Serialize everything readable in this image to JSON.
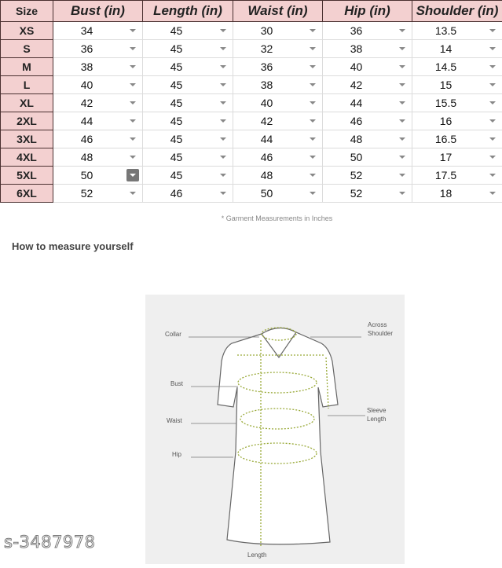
{
  "table": {
    "headers": [
      "Size",
      "Bust (in)",
      "Length (in)",
      "Waist (in)",
      "Hip (in)",
      "Shoulder (in)"
    ],
    "rows": [
      [
        "XS",
        "34",
        "45",
        "30",
        "36",
        "13.5"
      ],
      [
        "S",
        "36",
        "45",
        "32",
        "38",
        "14"
      ],
      [
        "M",
        "38",
        "45",
        "36",
        "40",
        "14.5"
      ],
      [
        "L",
        "40",
        "45",
        "38",
        "42",
        "15"
      ],
      [
        "XL",
        "42",
        "45",
        "40",
        "44",
        "15.5"
      ],
      [
        "2XL",
        "44",
        "45",
        "42",
        "46",
        "16"
      ],
      [
        "3XL",
        "46",
        "45",
        "44",
        "48",
        "16.5"
      ],
      [
        "4XL",
        "48",
        "45",
        "46",
        "50",
        "17"
      ],
      [
        "5XL",
        "50",
        "45",
        "48",
        "52",
        "17.5"
      ],
      [
        "6XL",
        "52",
        "46",
        "50",
        "52",
        "18"
      ]
    ]
  },
  "note": "* Garment Measurements in Inches",
  "howto_title": "How to measure yourself",
  "diagram": {
    "labels": {
      "collar": "Collar",
      "shoulder": "Across Shoulder",
      "bust": "Bust",
      "waist": "Waist",
      "hip": "Hip",
      "sleeve": "Sleeve Length",
      "length": "Length"
    }
  },
  "watermark": "s-3487978",
  "colors": {
    "header_bg": "#f3d0d0",
    "measure_line": "#9aaa3a"
  }
}
